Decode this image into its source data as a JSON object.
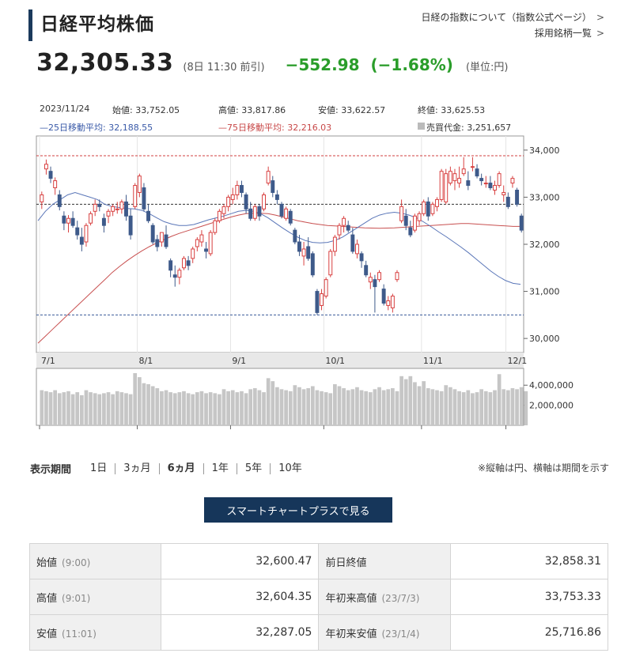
{
  "header": {
    "title": "日経平均株価",
    "link_index": "日経の指数について（指数公式ページ）",
    "link_constituents": "採用銘柄一覧",
    "chevron": ">"
  },
  "quote": {
    "price": "32,305.33",
    "time": "(8日 11:30 前引)",
    "change": "−552.98",
    "percent": "(−1.68%)",
    "unit": "(単位:円)"
  },
  "chart_info": {
    "date": "2023/11/24",
    "open": "始値: 33,752.05",
    "high": "高値: 33,817.86",
    "low": "安値: 33,622.57",
    "close": "終値: 33,625.53",
    "ma25": "—25日移動平均: 32,188.55",
    "ma75": "—75日移動平均: 32,216.03",
    "volume": "売買代金: 3,251,657"
  },
  "chart_data": {
    "type": "candlestick",
    "x_ticks": [
      "7/1",
      "8/1",
      "9/1",
      "10/1",
      "11/1",
      "12/1"
    ],
    "y_ticks": [
      "34,000",
      "33,000",
      "32,000",
      "31,000",
      "30,000"
    ],
    "ylim": [
      29700,
      34300
    ],
    "volume_ticks": [
      "4,000,000",
      "2,000,000"
    ],
    "volume_ylim": [
      0,
      5200000
    ],
    "ref_lines": {
      "high": 33880,
      "current": 32850,
      "low": 30500
    },
    "colors": {
      "up": "#d84040",
      "down": "#3e5a8a",
      "ma25": "#5a76b8",
      "ma75": "#c85050",
      "volume": "#c6c6c6",
      "ref_red": "#d04040",
      "ref_black": "#333333",
      "ref_blue": "#3a5a9a"
    },
    "candles": [
      {
        "o": 32900,
        "h": 33120,
        "l": 32750,
        "c": 33050
      },
      {
        "o": 33600,
        "h": 33800,
        "l": 33480,
        "c": 33700
      },
      {
        "o": 33550,
        "h": 33650,
        "l": 33300,
        "c": 33400
      },
      {
        "o": 33200,
        "h": 33420,
        "l": 33050,
        "c": 33350
      },
      {
        "o": 33050,
        "h": 33150,
        "l": 32720,
        "c": 32800
      },
      {
        "o": 32600,
        "h": 32700,
        "l": 32300,
        "c": 32450
      },
      {
        "o": 32450,
        "h": 32620,
        "l": 32250,
        "c": 32550
      },
      {
        "o": 32550,
        "h": 32700,
        "l": 32350,
        "c": 32400
      },
      {
        "o": 32350,
        "h": 32500,
        "l": 32100,
        "c": 32200
      },
      {
        "o": 32150,
        "h": 32350,
        "l": 31850,
        "c": 32000
      },
      {
        "o": 32050,
        "h": 32450,
        "l": 31950,
        "c": 32400
      },
      {
        "o": 32450,
        "h": 32700,
        "l": 32400,
        "c": 32650
      },
      {
        "o": 32700,
        "h": 32950,
        "l": 32600,
        "c": 32850
      },
      {
        "o": 32850,
        "h": 32950,
        "l": 32700,
        "c": 32800
      },
      {
        "o": 32550,
        "h": 32650,
        "l": 32250,
        "c": 32400
      },
      {
        "o": 32600,
        "h": 32750,
        "l": 32450,
        "c": 32700
      },
      {
        "o": 32700,
        "h": 32850,
        "l": 32600,
        "c": 32800
      },
      {
        "o": 32750,
        "h": 32900,
        "l": 32650,
        "c": 32750
      },
      {
        "o": 32750,
        "h": 32950,
        "l": 32650,
        "c": 32900
      },
      {
        "o": 32900,
        "h": 33050,
        "l": 32500,
        "c": 32600
      },
      {
        "o": 32600,
        "h": 32750,
        "l": 32100,
        "c": 32200
      },
      {
        "o": 32800,
        "h": 33300,
        "l": 32750,
        "c": 33250
      },
      {
        "o": 33100,
        "h": 33500,
        "l": 33000,
        "c": 33450
      },
      {
        "o": 33200,
        "h": 33300,
        "l": 32700,
        "c": 32750
      },
      {
        "o": 32700,
        "h": 32850,
        "l": 32450,
        "c": 32500
      },
      {
        "o": 32400,
        "h": 32450,
        "l": 32000,
        "c": 32050
      },
      {
        "o": 32100,
        "h": 32200,
        "l": 31850,
        "c": 31950
      },
      {
        "o": 32050,
        "h": 32250,
        "l": 31950,
        "c": 32250
      },
      {
        "o": 32200,
        "h": 32400,
        "l": 31900,
        "c": 31950
      },
      {
        "o": 31650,
        "h": 31700,
        "l": 31300,
        "c": 31450
      },
      {
        "o": 31350,
        "h": 31550,
        "l": 31100,
        "c": 31300
      },
      {
        "o": 31300,
        "h": 31500,
        "l": 31150,
        "c": 31450
      },
      {
        "o": 31500,
        "h": 31750,
        "l": 31450,
        "c": 31700
      },
      {
        "o": 31650,
        "h": 31750,
        "l": 31450,
        "c": 31550
      },
      {
        "o": 31700,
        "h": 31950,
        "l": 31600,
        "c": 31900
      },
      {
        "o": 31950,
        "h": 32150,
        "l": 31850,
        "c": 32100
      },
      {
        "o": 32050,
        "h": 32300,
        "l": 31950,
        "c": 32200
      },
      {
        "o": 31900,
        "h": 32050,
        "l": 31700,
        "c": 31850
      },
      {
        "o": 31800,
        "h": 32300,
        "l": 31750,
        "c": 32250
      },
      {
        "o": 32250,
        "h": 32550,
        "l": 32200,
        "c": 32500
      },
      {
        "o": 32500,
        "h": 32750,
        "l": 32450,
        "c": 32700
      },
      {
        "o": 32650,
        "h": 32850,
        "l": 32550,
        "c": 32800
      },
      {
        "o": 32800,
        "h": 33050,
        "l": 32700,
        "c": 33000
      },
      {
        "o": 32950,
        "h": 33200,
        "l": 32850,
        "c": 33050
      },
      {
        "o": 33050,
        "h": 33350,
        "l": 32950,
        "c": 33250
      },
      {
        "o": 33250,
        "h": 33350,
        "l": 33000,
        "c": 33100
      },
      {
        "o": 33050,
        "h": 33100,
        "l": 32650,
        "c": 32750
      },
      {
        "o": 32750,
        "h": 32900,
        "l": 32500,
        "c": 32550
      },
      {
        "o": 32550,
        "h": 32850,
        "l": 32500,
        "c": 32800
      },
      {
        "o": 32800,
        "h": 32850,
        "l": 32500,
        "c": 32600
      },
      {
        "o": 32750,
        "h": 33100,
        "l": 32700,
        "c": 33050
      },
      {
        "o": 33300,
        "h": 33650,
        "l": 33250,
        "c": 33550
      },
      {
        "o": 33350,
        "h": 33450,
        "l": 33000,
        "c": 33100
      },
      {
        "o": 33050,
        "h": 33150,
        "l": 32850,
        "c": 32950
      },
      {
        "o": 32850,
        "h": 32900,
        "l": 32550,
        "c": 32600
      },
      {
        "o": 32550,
        "h": 32800,
        "l": 32500,
        "c": 32750
      },
      {
        "o": 32700,
        "h": 32750,
        "l": 32400,
        "c": 32450
      },
      {
        "o": 32300,
        "h": 32350,
        "l": 32000,
        "c": 32050
      },
      {
        "o": 32050,
        "h": 32200,
        "l": 31750,
        "c": 31850
      },
      {
        "o": 31750,
        "h": 32050,
        "l": 31550,
        "c": 31900
      },
      {
        "o": 31950,
        "h": 32150,
        "l": 31650,
        "c": 31700
      },
      {
        "o": 31800,
        "h": 31850,
        "l": 31300,
        "c": 31350
      },
      {
        "o": 31000,
        "h": 31050,
        "l": 30500,
        "c": 30550
      },
      {
        "o": 30700,
        "h": 31050,
        "l": 30600,
        "c": 30950
      },
      {
        "o": 30900,
        "h": 31300,
        "l": 30850,
        "c": 31250
      },
      {
        "o": 31350,
        "h": 31900,
        "l": 31300,
        "c": 31850
      },
      {
        "o": 31850,
        "h": 32200,
        "l": 31750,
        "c": 32150
      },
      {
        "o": 32200,
        "h": 32450,
        "l": 32100,
        "c": 32400
      },
      {
        "o": 32400,
        "h": 32600,
        "l": 32250,
        "c": 32550
      },
      {
        "o": 32400,
        "h": 32500,
        "l": 32250,
        "c": 32300
      },
      {
        "o": 32200,
        "h": 32350,
        "l": 31800,
        "c": 31850
      },
      {
        "o": 31800,
        "h": 32100,
        "l": 31700,
        "c": 32000
      },
      {
        "o": 31800,
        "h": 31850,
        "l": 31500,
        "c": 31650
      },
      {
        "o": 31550,
        "h": 31650,
        "l": 31300,
        "c": 31350
      },
      {
        "o": 31200,
        "h": 31400,
        "l": 31050,
        "c": 31300
      },
      {
        "o": 31250,
        "h": 31350,
        "l": 30550,
        "c": 31100
      },
      {
        "o": 31250,
        "h": 31450,
        "l": 31200,
        "c": 31400
      },
      {
        "o": 31050,
        "h": 31150,
        "l": 30700,
        "c": 30750
      },
      {
        "o": 30700,
        "h": 30900,
        "l": 30600,
        "c": 30800
      },
      {
        "o": 30650,
        "h": 30950,
        "l": 30550,
        "c": 30900
      },
      {
        "o": 31250,
        "h": 31450,
        "l": 31200,
        "c": 31400
      },
      {
        "o": 32500,
        "h": 32950,
        "l": 32450,
        "c": 32800
      },
      {
        "o": 32600,
        "h": 32750,
        "l": 32300,
        "c": 32400
      },
      {
        "o": 32350,
        "h": 32500,
        "l": 32150,
        "c": 32200
      },
      {
        "o": 32300,
        "h": 32650,
        "l": 32250,
        "c": 32600
      },
      {
        "o": 32500,
        "h": 32700,
        "l": 32400,
        "c": 32650
      },
      {
        "o": 32650,
        "h": 32950,
        "l": 32600,
        "c": 32900
      },
      {
        "o": 32900,
        "h": 33000,
        "l": 32500,
        "c": 32600
      },
      {
        "o": 32650,
        "h": 32900,
        "l": 32600,
        "c": 32850
      },
      {
        "o": 32800,
        "h": 33000,
        "l": 32700,
        "c": 32950
      },
      {
        "o": 32950,
        "h": 33600,
        "l": 32900,
        "c": 33550
      },
      {
        "o": 32900,
        "h": 33600,
        "l": 32850,
        "c": 33500
      },
      {
        "o": 33300,
        "h": 33650,
        "l": 33250,
        "c": 33550
      },
      {
        "o": 33350,
        "h": 33600,
        "l": 33150,
        "c": 33500
      },
      {
        "o": 33300,
        "h": 33650,
        "l": 33200,
        "c": 33400
      },
      {
        "o": 33500,
        "h": 33850,
        "l": 33450,
        "c": 33600
      },
      {
        "o": 33350,
        "h": 33550,
        "l": 33150,
        "c": 33250
      },
      {
        "o": 33650,
        "h": 33850,
        "l": 33550,
        "c": 33650
      },
      {
        "o": 33600,
        "h": 33700,
        "l": 33400,
        "c": 33450
      },
      {
        "o": 33400,
        "h": 33500,
        "l": 33250,
        "c": 33350
      },
      {
        "o": 33300,
        "h": 33450,
        "l": 33200,
        "c": 33300
      },
      {
        "o": 33300,
        "h": 33450,
        "l": 33150,
        "c": 33200
      },
      {
        "o": 33150,
        "h": 33350,
        "l": 33050,
        "c": 33250
      },
      {
        "o": 33250,
        "h": 33550,
        "l": 33200,
        "c": 33500
      },
      {
        "o": 33050,
        "h": 33250,
        "l": 32900,
        "c": 33100
      },
      {
        "o": 33000,
        "h": 33100,
        "l": 32750,
        "c": 32800
      },
      {
        "o": 33300,
        "h": 33450,
        "l": 33200,
        "c": 33400
      },
      {
        "o": 33150,
        "h": 33200,
        "l": 32800,
        "c": 32850
      },
      {
        "o": 32600,
        "h": 32650,
        "l": 32250,
        "c": 32300
      }
    ],
    "ma25": [
      32500,
      32700,
      32850,
      32950,
      33050,
      33100,
      33050,
      33000,
      32950,
      32850,
      32800,
      32780,
      32760,
      32750,
      32720,
      32650,
      32560,
      32480,
      32430,
      32400,
      32400,
      32420,
      32470,
      32520,
      32560,
      32600,
      32650,
      32700,
      32720,
      32700,
      32650,
      32560,
      32450,
      32340,
      32240,
      32150,
      32080,
      32040,
      32030,
      32040,
      32080,
      32150,
      32250,
      32350,
      32450,
      32550,
      32620,
      32660,
      32680,
      32660,
      32620,
      32560,
      32470,
      32370,
      32260,
      32160,
      32050,
      31940,
      31820,
      31690,
      31560,
      31430,
      31320,
      31230,
      31170,
      31150
    ],
    "ma75": [
      29900,
      30050,
      30200,
      30350,
      30500,
      30650,
      30800,
      30950,
      31100,
      31250,
      31400,
      31530,
      31650,
      31760,
      31860,
      31950,
      32030,
      32100,
      32170,
      32230,
      32280,
      32330,
      32380,
      32430,
      32480,
      32530,
      32580,
      32620,
      32650,
      32660,
      32660,
      32650,
      32620,
      32580,
      32540,
      32500,
      32470,
      32440,
      32420,
      32400,
      32390,
      32380,
      32370,
      32360,
      32350,
      32345,
      32340,
      32345,
      32350,
      32360,
      32370,
      32380,
      32390,
      32400,
      32410,
      32420,
      32430,
      32440,
      32440,
      32430,
      32420,
      32410,
      32400,
      32390,
      32380,
      32380
    ],
    "volume": [
      3500000,
      3400000,
      3300000,
      3500000,
      3200000,
      3300000,
      3400000,
      3100000,
      3300000,
      3000000,
      3500000,
      3300000,
      3200000,
      3100000,
      3200000,
      3300000,
      3100000,
      3400000,
      3300000,
      3200000,
      3100000,
      5200000,
      4800000,
      4200000,
      4100000,
      3900000,
      3700000,
      3400000,
      3500000,
      3300000,
      3200000,
      3300000,
      3400000,
      3200000,
      3100000,
      3300000,
      3400000,
      3200000,
      3300000,
      3200000,
      3100000,
      3600000,
      3400000,
      3500000,
      3300000,
      3400000,
      3200000,
      3600000,
      3700000,
      3500000,
      3300000,
      4700000,
      4400000,
      3800000,
      3600000,
      3500000,
      3400000,
      4000000,
      3800000,
      3600000,
      3700000,
      3900000,
      3500000,
      3400000,
      3300000,
      3200000,
      4100000,
      3900000,
      3700000,
      3500000,
      3600000,
      3800000,
      3500000,
      3400000,
      3300000,
      3600000,
      3800000,
      3500000,
      3600000,
      3700000,
      3400000,
      4900000,
      4600000,
      4900000,
      4300000,
      3900000,
      4400000,
      3700000,
      3600000,
      3500000,
      3400000,
      4000000,
      3800000,
      3600000,
      3400000,
      3300000,
      3500000,
      3200000,
      3300000,
      3600000,
      3400000,
      3300000,
      3500000,
      5100000,
      3600000,
      3500000,
      3700000,
      3600000,
      3800000,
      3400000
    ],
    "tooltip": "2023/11/24"
  },
  "periods": {
    "label": "表示期間",
    "items": [
      "1日",
      "3ヵ月",
      "6ヵ月",
      "1年",
      "5年",
      "10年"
    ],
    "active": "6ヵ月"
  },
  "note": "※縦軸は円、横軸は期間を示す",
  "smart_button": "スマートチャートプラスで見る",
  "stats": [
    {
      "label": "始値",
      "sub": "(9:00)",
      "value": "32,600.47",
      "label2": "前日終値",
      "sub2": "",
      "value2": "32,858.31"
    },
    {
      "label": "高値",
      "sub": "(9:01)",
      "value": "32,604.35",
      "label2": "年初来高値",
      "sub2": "(23/7/3)",
      "value2": "33,753.33"
    },
    {
      "label": "安値",
      "sub": "(11:01)",
      "value": "32,287.05",
      "label2": "年初来安値",
      "sub2": "(23/1/4)",
      "value2": "25,716.86"
    }
  ]
}
